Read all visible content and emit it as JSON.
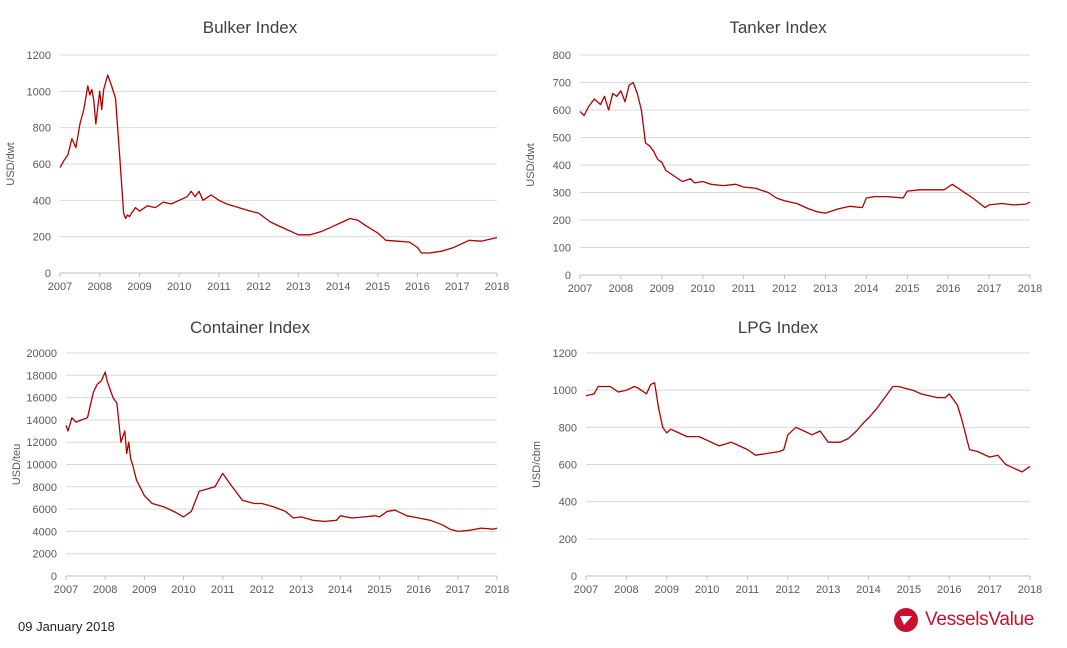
{
  "footer": {
    "date": "09 January 2018"
  },
  "brand": {
    "name": "VesselsValue",
    "color": "#c8102e"
  },
  "colors": {
    "line": "#b00000",
    "grid": "#d9d9d9",
    "text": "#595959",
    "title": "#404040"
  },
  "chart_data": [
    {
      "type": "line",
      "title": "Bulker Index",
      "xlabel": "",
      "ylabel": "USD/dwt",
      "xlim": [
        2007,
        2018
      ],
      "ylim": [
        0,
        1200
      ],
      "yticks": [
        0,
        200,
        400,
        600,
        800,
        1000,
        1200
      ],
      "xticks": [
        2007,
        2008,
        2009,
        2010,
        2011,
        2012,
        2013,
        2014,
        2015,
        2016,
        2017,
        2018
      ],
      "grid": true,
      "series": [
        {
          "x": [
            2007.0,
            2007.1,
            2007.2,
            2007.3,
            2007.4,
            2007.5,
            2007.6,
            2007.7,
            2007.75,
            2007.8,
            2007.85,
            2007.9,
            2008.0,
            2008.05,
            2008.1,
            2008.2,
            2008.3,
            2008.4,
            2008.45,
            2008.5,
            2008.6,
            2008.65,
            2008.7,
            2008.75,
            2008.8,
            2008.9,
            2009.0,
            2009.2,
            2009.4,
            2009.6,
            2009.8,
            2010.0,
            2010.2,
            2010.3,
            2010.4,
            2010.5,
            2010.6,
            2010.8,
            2011.0,
            2011.2,
            2011.5,
            2011.8,
            2012.0,
            2012.3,
            2012.6,
            2012.8,
            2013.0,
            2013.3,
            2013.6,
            2013.9,
            2014.1,
            2014.3,
            2014.5,
            2014.7,
            2015.0,
            2015.2,
            2015.5,
            2015.8,
            2016.0,
            2016.1,
            2016.3,
            2016.6,
            2016.9,
            2017.0,
            2017.3,
            2017.6,
            2017.8,
            2018.0
          ],
          "y": [
            580,
            620,
            650,
            740,
            690,
            820,
            900,
            1030,
            980,
            1010,
            950,
            820,
            1000,
            900,
            1010,
            1090,
            1030,
            960,
            800,
            650,
            330,
            300,
            320,
            310,
            330,
            360,
            340,
            370,
            360,
            390,
            380,
            400,
            420,
            450,
            420,
            450,
            400,
            430,
            400,
            380,
            360,
            340,
            330,
            280,
            250,
            230,
            210,
            210,
            230,
            260,
            280,
            300,
            290,
            260,
            220,
            180,
            175,
            170,
            140,
            110,
            110,
            120,
            140,
            150,
            180,
            175,
            185,
            195
          ]
        }
      ]
    },
    {
      "type": "line",
      "title": "Tanker Index",
      "xlabel": "",
      "ylabel": "USD/dwt",
      "xlim": [
        2007,
        2018
      ],
      "ylim": [
        0,
        800
      ],
      "yticks": [
        0,
        100,
        200,
        300,
        400,
        500,
        600,
        700,
        800
      ],
      "xticks": [
        2007,
        2008,
        2009,
        2010,
        2011,
        2012,
        2013,
        2014,
        2015,
        2016,
        2017,
        2018
      ],
      "grid": true,
      "series": [
        {
          "x": [
            2007.0,
            2007.1,
            2007.2,
            2007.35,
            2007.5,
            2007.6,
            2007.7,
            2007.8,
            2007.9,
            2008.0,
            2008.1,
            2008.2,
            2008.3,
            2008.4,
            2008.5,
            2008.6,
            2008.7,
            2008.8,
            2008.9,
            2009.0,
            2009.1,
            2009.3,
            2009.5,
            2009.7,
            2009.8,
            2010.0,
            2010.2,
            2010.5,
            2010.8,
            2011.0,
            2011.3,
            2011.6,
            2011.8,
            2012.0,
            2012.3,
            2012.6,
            2012.8,
            2013.0,
            2013.3,
            2013.6,
            2013.9,
            2014.0,
            2014.2,
            2014.5,
            2014.9,
            2015.0,
            2015.3,
            2015.6,
            2015.9,
            2016.0,
            2016.1,
            2016.3,
            2016.6,
            2016.9,
            2017.0,
            2017.3,
            2017.6,
            2017.9,
            2018.0
          ],
          "y": [
            595,
            580,
            610,
            640,
            620,
            650,
            600,
            660,
            650,
            670,
            630,
            690,
            700,
            660,
            600,
            480,
            470,
            450,
            420,
            410,
            380,
            360,
            340,
            350,
            335,
            340,
            330,
            325,
            330,
            320,
            315,
            300,
            280,
            270,
            260,
            240,
            230,
            225,
            240,
            250,
            245,
            280,
            285,
            285,
            280,
            305,
            310,
            310,
            310,
            320,
            330,
            310,
            280,
            245,
            255,
            260,
            255,
            258,
            265
          ]
        }
      ]
    },
    {
      "type": "line",
      "title": "Container Index",
      "xlabel": "",
      "ylabel": "USD/teu",
      "xlim": [
        2007,
        2018
      ],
      "ylim": [
        0,
        20000
      ],
      "yticks": [
        0,
        2000,
        4000,
        6000,
        8000,
        10000,
        12000,
        14000,
        16000,
        18000,
        20000
      ],
      "xticks": [
        2007,
        2008,
        2009,
        2010,
        2011,
        2012,
        2013,
        2014,
        2015,
        2016,
        2017,
        2018
      ],
      "grid": true,
      "series": [
        {
          "x": [
            2007.0,
            2007.05,
            2007.15,
            2007.25,
            2007.4,
            2007.55,
            2007.7,
            2007.8,
            2007.9,
            2008.0,
            2008.05,
            2008.1,
            2008.2,
            2008.3,
            2008.4,
            2008.5,
            2008.55,
            2008.6,
            2008.65,
            2008.7,
            2008.8,
            2009.0,
            2009.2,
            2009.5,
            2009.8,
            2010.0,
            2010.2,
            2010.4,
            2010.6,
            2010.8,
            2011.0,
            2011.2,
            2011.5,
            2011.8,
            2012.0,
            2012.3,
            2012.6,
            2012.8,
            2013.0,
            2013.3,
            2013.6,
            2013.9,
            2014.0,
            2014.3,
            2014.6,
            2014.9,
            2015.0,
            2015.2,
            2015.4,
            2015.7,
            2016.0,
            2016.3,
            2016.6,
            2016.8,
            2017.0,
            2017.3,
            2017.6,
            2017.9,
            2018.0
          ],
          "y": [
            13500,
            13000,
            14200,
            13800,
            14000,
            14200,
            16500,
            17200,
            17500,
            18300,
            17500,
            17000,
            16000,
            15500,
            12000,
            13000,
            11000,
            12000,
            10500,
            10000,
            8600,
            7200,
            6500,
            6200,
            5700,
            5300,
            5800,
            7600,
            7800,
            8000,
            9200,
            8200,
            6800,
            6500,
            6500,
            6200,
            5800,
            5200,
            5300,
            5000,
            4900,
            5000,
            5400,
            5200,
            5300,
            5400,
            5300,
            5800,
            5900,
            5400,
            5200,
            5000,
            4600,
            4200,
            4000,
            4100,
            4300,
            4200,
            4300
          ]
        }
      ]
    },
    {
      "type": "line",
      "title": "LPG Index",
      "xlabel": "",
      "ylabel": "USD/cbm",
      "xlim": [
        2007,
        2018
      ],
      "ylim": [
        0,
        1200
      ],
      "yticks": [
        0,
        200,
        400,
        600,
        800,
        1000,
        1200
      ],
      "xticks": [
        2007,
        2008,
        2009,
        2010,
        2011,
        2012,
        2013,
        2014,
        2015,
        2016,
        2017,
        2018
      ],
      "grid": true,
      "series": [
        {
          "x": [
            2007.0,
            2007.2,
            2007.3,
            2007.6,
            2007.8,
            2008.0,
            2008.2,
            2008.3,
            2008.5,
            2008.6,
            2008.7,
            2008.8,
            2008.9,
            2009.0,
            2009.1,
            2009.3,
            2009.5,
            2009.8,
            2010.0,
            2010.3,
            2010.6,
            2010.8,
            2011.0,
            2011.2,
            2011.5,
            2011.8,
            2011.9,
            2012.0,
            2012.2,
            2012.4,
            2012.6,
            2012.8,
            2013.0,
            2013.3,
            2013.5,
            2013.7,
            2013.9,
            2014.0,
            2014.2,
            2014.4,
            2014.6,
            2014.75,
            2014.9,
            2015.1,
            2015.3,
            2015.5,
            2015.7,
            2015.9,
            2016.0,
            2016.2,
            2016.3,
            2016.5,
            2016.7,
            2016.8,
            2017.0,
            2017.2,
            2017.4,
            2017.6,
            2017.8,
            2018.0
          ],
          "y": [
            970,
            980,
            1020,
            1020,
            990,
            1000,
            1020,
            1010,
            980,
            1030,
            1040,
            900,
            800,
            770,
            790,
            770,
            750,
            750,
            730,
            700,
            720,
            700,
            680,
            650,
            660,
            670,
            680,
            760,
            800,
            780,
            760,
            780,
            720,
            720,
            740,
            780,
            830,
            850,
            900,
            960,
            1020,
            1020,
            1010,
            1000,
            980,
            970,
            960,
            960,
            980,
            920,
            850,
            680,
            670,
            660,
            640,
            650,
            600,
            580,
            560,
            590
          ]
        }
      ]
    }
  ]
}
